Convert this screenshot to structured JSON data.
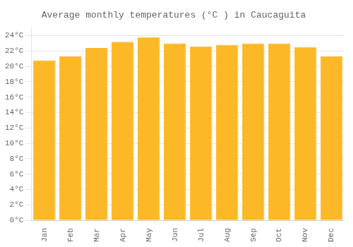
{
  "chart_data": {
    "type": "bar",
    "title": "Average monthly temperatures (°C ) in Caucaguita",
    "categories": [
      "Jan",
      "Feb",
      "Mar",
      "Apr",
      "May",
      "Jun",
      "Jul",
      "Aug",
      "Sep",
      "Oct",
      "Nov",
      "Dec"
    ],
    "values": [
      20.8,
      21.3,
      22.4,
      23.2,
      23.8,
      23.0,
      22.6,
      22.8,
      23.0,
      23.0,
      22.5,
      21.3
    ],
    "color": "#FDB827",
    "ylim": [
      0,
      25
    ],
    "yticks": [
      {
        "value": 0,
        "label": "0°C"
      },
      {
        "value": 2,
        "label": "2°C"
      },
      {
        "value": 4,
        "label": "4°C"
      },
      {
        "value": 6,
        "label": "6°C"
      },
      {
        "value": 8,
        "label": "8°C"
      },
      {
        "value": 10,
        "label": "10°C"
      },
      {
        "value": 12,
        "label": "12°C"
      },
      {
        "value": 14,
        "label": "14°C"
      },
      {
        "value": 16,
        "label": "16°C"
      },
      {
        "value": 18,
        "label": "18°C"
      },
      {
        "value": 20,
        "label": "20°C"
      },
      {
        "value": 22,
        "label": "22°C"
      },
      {
        "value": 24,
        "label": "24°C"
      }
    ],
    "grid": true
  }
}
